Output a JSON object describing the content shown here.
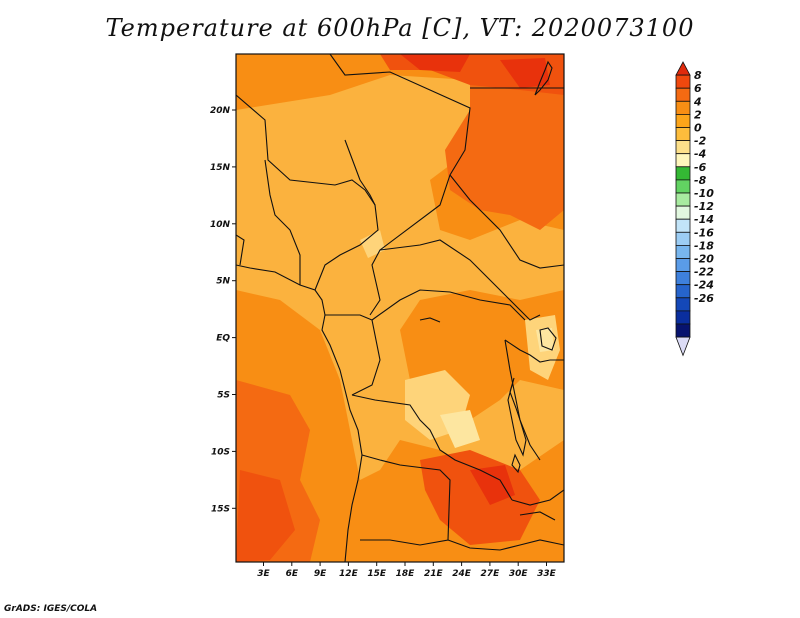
{
  "title": "Temperature at 600hPa [C], VT: 2020073100",
  "footer": "GrADS: IGES/COLA",
  "map": {
    "lat_labels": [
      "20N",
      "15N",
      "10N",
      "5N",
      "EQ",
      "5S",
      "10S",
      "15S"
    ],
    "lon_labels": [
      "3E",
      "6E",
      "9E",
      "12E",
      "15E",
      "18E",
      "21E",
      "24E",
      "27E",
      "30E",
      "33E"
    ]
  },
  "colorbar": {
    "labels": [
      "8",
      "6",
      "4",
      "2",
      "0",
      "-2",
      "-4",
      "-6",
      "-8",
      "-10",
      "-12",
      "-14",
      "-16",
      "-18",
      "-20",
      "-22",
      "-24",
      "-26"
    ],
    "colors": [
      "#e02a0c",
      "#f0480e",
      "#f46a12",
      "#f88e14",
      "#fca51a",
      "#fdbd3c",
      "#fde08a",
      "#fef6bc",
      "#34b834",
      "#62d362",
      "#a8eba0",
      "#e2f8e0",
      "#c2e4f8",
      "#9ccdf4",
      "#78b6ee",
      "#5a9ce8",
      "#3e80dc",
      "#2664cc",
      "#1448b8",
      "#0a2e9e",
      "#07136e",
      "#dcdcf6"
    ]
  },
  "palette": {
    "dark_orange": "#f0520e",
    "orange": "#f88e14",
    "light_orange": "#fbb23e",
    "pale": "#fed47a",
    "pale2": "#fde6a0",
    "red": "#e8320c",
    "border": "#111111"
  }
}
